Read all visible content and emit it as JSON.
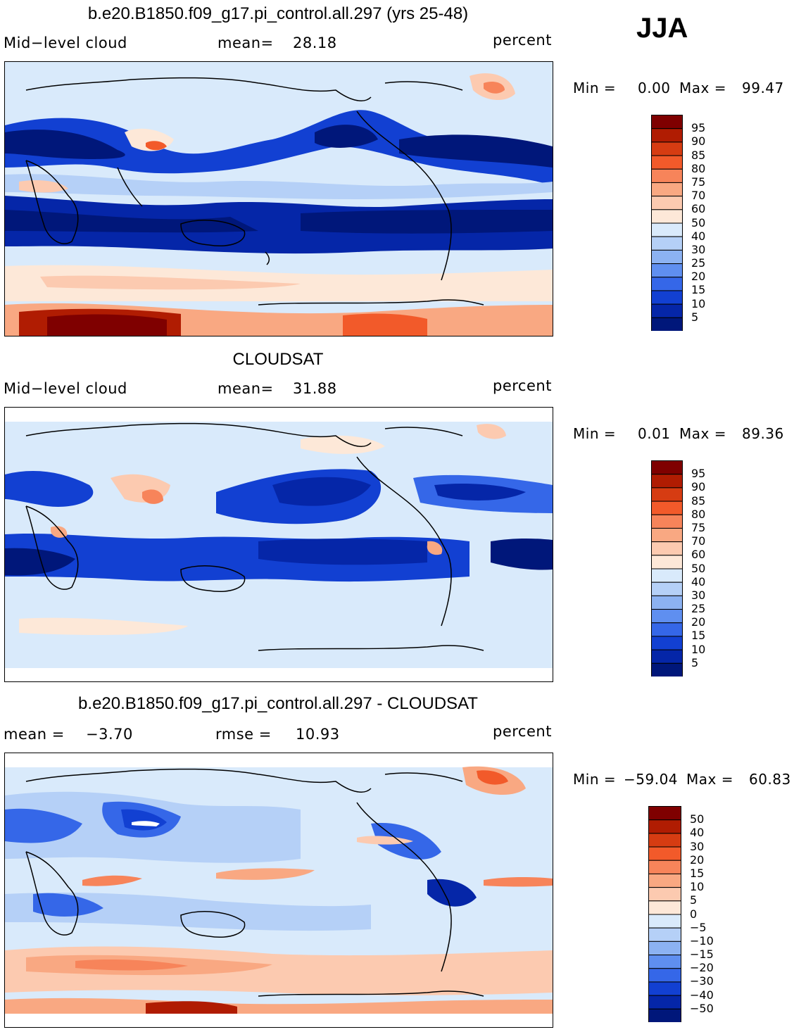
{
  "season": "JJA",
  "panels": [
    {
      "title": "b.e20.B1850.f09_g17.pi_control.all.297 (yrs 25-48)",
      "left_label": "Mid−level cloud",
      "stat1_label": "mean=",
      "stat1_value": "28.18",
      "stat2_label": "",
      "stat2_value": "",
      "units": "percent",
      "min_label": "Min =",
      "min_value": "0.00",
      "max_label": "Max =",
      "max_value": "99.47",
      "colorbar_labels": [
        "95",
        "90",
        "85",
        "80",
        "75",
        "70",
        "60",
        "50",
        "40",
        "30",
        "25",
        "20",
        "15",
        "10",
        "5"
      ]
    },
    {
      "title": "CLOUDSAT",
      "left_label": "Mid−level cloud",
      "stat1_label": "mean=",
      "stat1_value": "31.88",
      "stat2_label": "",
      "stat2_value": "",
      "units": "percent",
      "min_label": "Min =",
      "min_value": "0.01",
      "max_label": "Max =",
      "max_value": "89.36",
      "colorbar_labels": [
        "95",
        "90",
        "85",
        "80",
        "75",
        "70",
        "60",
        "50",
        "40",
        "30",
        "25",
        "20",
        "15",
        "10",
        "5"
      ]
    },
    {
      "title": "b.e20.B1850.f09_g17.pi_control.all.297 - CLOUDSAT",
      "left_label": "",
      "stat1_label": "mean =",
      "stat1_value": "−3.70",
      "stat2_label": "rmse =",
      "stat2_value": "10.93",
      "units": "percent",
      "min_label": "Min =",
      "min_value": "−59.04",
      "max_label": "Max =",
      "max_value": "60.83",
      "colorbar_labels": [
        "50",
        "40",
        "30",
        "20",
        "15",
        "10",
        "5",
        "0",
        "−5",
        "−10",
        "−15",
        "−20",
        "−30",
        "−40",
        "−50"
      ]
    }
  ],
  "colors": {
    "scale": [
      "#7f0000",
      "#b01c02",
      "#d63c12",
      "#f25a2a",
      "#f7845a",
      "#f9a882",
      "#fccab0",
      "#fde8d8",
      "#d9eafb",
      "#b5d0f7",
      "#8cb2f2",
      "#5f8ff0",
      "#3567e8",
      "#1240d2",
      "#0526a8",
      "#00177a"
    ]
  }
}
